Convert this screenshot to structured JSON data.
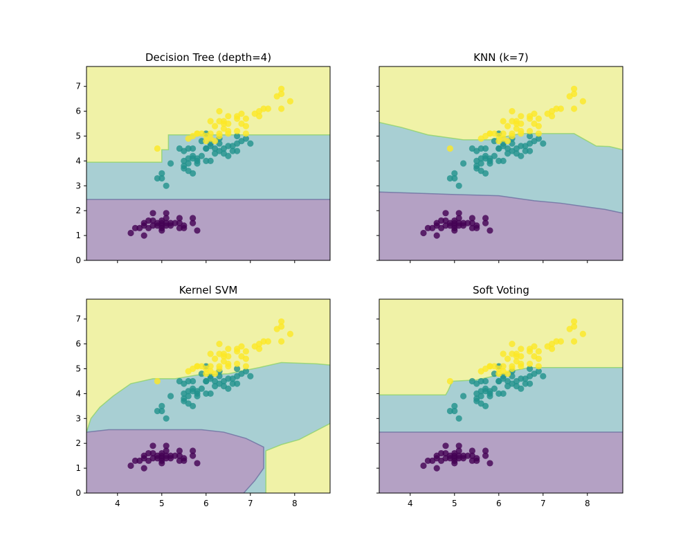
{
  "colors": {
    "class_0": "#440154",
    "class_1": "#21918c",
    "class_2": "#fde725",
    "region_0": "#b4a1c4",
    "region_1": "#a8cfd3",
    "region_2": "#f0f2a7"
  },
  "chart_data": [
    {
      "type": "scatter",
      "title": "Decision Tree (depth=4)",
      "xlim": [
        3.3,
        8.8
      ],
      "ylim": [
        0,
        7.8
      ],
      "xticks": [
        4,
        5,
        6,
        7,
        8
      ],
      "yticks": [
        0,
        1,
        2,
        3,
        4,
        5,
        6,
        7
      ],
      "show_x_tick_labels": false,
      "show_y_tick_labels": true,
      "boundaries": [
        {
          "name": "0-1",
          "points": [
            [
              3.3,
              2.45
            ],
            [
              8.8,
              2.45
            ]
          ]
        },
        {
          "name": "1-2",
          "points": [
            [
              3.3,
              3.95
            ],
            [
              5.0,
              3.95
            ],
            [
              5.0,
              4.45
            ],
            [
              5.15,
              4.45
            ],
            [
              5.15,
              5.05
            ],
            [
              8.8,
              5.05
            ]
          ]
        }
      ]
    },
    {
      "type": "scatter",
      "title": "KNN (k=7)",
      "xlim": [
        3.3,
        8.8
      ],
      "ylim": [
        0,
        7.8
      ],
      "xticks": [
        4,
        5,
        6,
        7,
        8
      ],
      "yticks": [
        0,
        1,
        2,
        3,
        4,
        5,
        6,
        7
      ],
      "show_x_tick_labels": false,
      "show_y_tick_labels": false,
      "boundaries": [
        {
          "name": "0-1",
          "points": [
            [
              3.3,
              2.75
            ],
            [
              4.2,
              2.7
            ],
            [
              5.0,
              2.65
            ],
            [
              6.0,
              2.6
            ],
            [
              6.8,
              2.4
            ],
            [
              7.4,
              2.3
            ],
            [
              8.0,
              2.15
            ],
            [
              8.4,
              2.05
            ],
            [
              8.8,
              1.9
            ]
          ]
        },
        {
          "name": "1-2",
          "points": [
            [
              3.3,
              5.55
            ],
            [
              3.8,
              5.35
            ],
            [
              4.4,
              5.05
            ],
            [
              5.2,
              4.85
            ],
            [
              5.8,
              4.85
            ],
            [
              6.5,
              5.1
            ],
            [
              7.7,
              5.1
            ],
            [
              8.2,
              4.6
            ],
            [
              8.5,
              4.58
            ],
            [
              8.8,
              4.45
            ]
          ]
        }
      ]
    },
    {
      "type": "scatter",
      "title": "Kernel SVM",
      "xlim": [
        3.3,
        8.8
      ],
      "ylim": [
        0,
        7.8
      ],
      "xticks": [
        4,
        5,
        6,
        7,
        8
      ],
      "yticks": [
        0,
        1,
        2,
        3,
        4,
        5,
        6,
        7
      ],
      "show_x_tick_labels": true,
      "show_y_tick_labels": true,
      "region0_polygon": [
        [
          3.3,
          0
        ],
        [
          3.3,
          2.45
        ],
        [
          3.8,
          2.55
        ],
        [
          5.9,
          2.55
        ],
        [
          6.4,
          2.45
        ],
        [
          6.9,
          2.2
        ],
        [
          7.3,
          1.85
        ],
        [
          7.3,
          1.0
        ],
        [
          7.1,
          0.5
        ],
        [
          6.85,
          0
        ]
      ],
      "boundaries": [
        {
          "name": "0-1",
          "points": [
            [
              3.3,
              2.45
            ],
            [
              3.8,
              2.55
            ],
            [
              5.9,
              2.55
            ],
            [
              6.4,
              2.45
            ],
            [
              6.9,
              2.2
            ],
            [
              7.3,
              1.85
            ],
            [
              7.3,
              1.0
            ],
            [
              7.1,
              0.5
            ],
            [
              6.85,
              0
            ]
          ]
        },
        {
          "name": "1-2a",
          "points": [
            [
              3.3,
              2.45
            ],
            [
              3.4,
              3.0
            ],
            [
              3.6,
              3.45
            ],
            [
              3.9,
              3.9
            ],
            [
              4.3,
              4.4
            ],
            [
              4.8,
              4.6
            ],
            [
              5.3,
              4.6
            ],
            [
              5.8,
              4.75
            ],
            [
              6.5,
              4.8
            ],
            [
              7.2,
              5.05
            ],
            [
              7.7,
              5.25
            ],
            [
              8.5,
              5.2
            ],
            [
              8.8,
              5.15
            ]
          ]
        },
        {
          "name": "1-2b",
          "points": [
            [
              7.35,
              0
            ],
            [
              7.35,
              1.7
            ],
            [
              7.7,
              1.95
            ],
            [
              8.1,
              2.15
            ],
            [
              8.8,
              2.8
            ]
          ]
        }
      ]
    },
    {
      "type": "scatter",
      "title": "Soft Voting",
      "xlim": [
        3.3,
        8.8
      ],
      "ylim": [
        0,
        7.8
      ],
      "xticks": [
        4,
        5,
        6,
        7,
        8
      ],
      "yticks": [
        0,
        1,
        2,
        3,
        4,
        5,
        6,
        7
      ],
      "show_x_tick_labels": true,
      "show_y_tick_labels": false,
      "boundaries": [
        {
          "name": "0-1",
          "points": [
            [
              3.3,
              2.45
            ],
            [
              8.8,
              2.45
            ]
          ]
        },
        {
          "name": "1-2",
          "points": [
            [
              3.3,
              3.95
            ],
            [
              4.8,
              3.95
            ],
            [
              4.85,
              4.1
            ],
            [
              4.95,
              4.5
            ],
            [
              5.5,
              4.55
            ],
            [
              6.0,
              4.75
            ],
            [
              6.4,
              4.95
            ],
            [
              6.7,
              5.05
            ],
            [
              8.8,
              5.05
            ]
          ]
        }
      ]
    }
  ],
  "points": [
    {
      "cls": 0,
      "x": 4.3,
      "y": 1.1
    },
    {
      "cls": 0,
      "x": 4.4,
      "y": 1.3
    },
    {
      "cls": 0,
      "x": 4.5,
      "y": 1.3
    },
    {
      "cls": 0,
      "x": 4.6,
      "y": 1.0
    },
    {
      "cls": 0,
      "x": 4.6,
      "y": 1.4
    },
    {
      "cls": 0,
      "x": 4.6,
      "y": 1.5
    },
    {
      "cls": 0,
      "x": 4.7,
      "y": 1.3
    },
    {
      "cls": 0,
      "x": 4.7,
      "y": 1.6
    },
    {
      "cls": 0,
      "x": 4.8,
      "y": 1.4
    },
    {
      "cls": 0,
      "x": 4.8,
      "y": 1.6
    },
    {
      "cls": 0,
      "x": 4.8,
      "y": 1.9
    },
    {
      "cls": 0,
      "x": 4.9,
      "y": 1.4
    },
    {
      "cls": 0,
      "x": 4.9,
      "y": 1.5
    },
    {
      "cls": 0,
      "x": 5.0,
      "y": 1.2
    },
    {
      "cls": 0,
      "x": 5.0,
      "y": 1.3
    },
    {
      "cls": 0,
      "x": 5.0,
      "y": 1.4
    },
    {
      "cls": 0,
      "x": 5.0,
      "y": 1.5
    },
    {
      "cls": 0,
      "x": 5.0,
      "y": 1.6
    },
    {
      "cls": 0,
      "x": 5.1,
      "y": 1.4
    },
    {
      "cls": 0,
      "x": 5.1,
      "y": 1.5
    },
    {
      "cls": 0,
      "x": 5.1,
      "y": 1.7
    },
    {
      "cls": 0,
      "x": 5.1,
      "y": 1.9
    },
    {
      "cls": 0,
      "x": 5.2,
      "y": 1.4
    },
    {
      "cls": 0,
      "x": 5.2,
      "y": 1.5
    },
    {
      "cls": 0,
      "x": 5.3,
      "y": 1.5
    },
    {
      "cls": 0,
      "x": 5.4,
      "y": 1.3
    },
    {
      "cls": 0,
      "x": 5.4,
      "y": 1.5
    },
    {
      "cls": 0,
      "x": 5.4,
      "y": 1.7
    },
    {
      "cls": 0,
      "x": 5.5,
      "y": 1.3
    },
    {
      "cls": 0,
      "x": 5.5,
      "y": 1.4
    },
    {
      "cls": 0,
      "x": 5.7,
      "y": 1.5
    },
    {
      "cls": 0,
      "x": 5.7,
      "y": 1.7
    },
    {
      "cls": 0,
      "x": 5.8,
      "y": 1.2
    },
    {
      "cls": 1,
      "x": 4.9,
      "y": 3.3
    },
    {
      "cls": 1,
      "x": 5.0,
      "y": 3.5
    },
    {
      "cls": 1,
      "x": 5.0,
      "y": 3.3
    },
    {
      "cls": 1,
      "x": 5.1,
      "y": 3.0
    },
    {
      "cls": 1,
      "x": 5.2,
      "y": 3.9
    },
    {
      "cls": 1,
      "x": 5.4,
      "y": 4.5
    },
    {
      "cls": 1,
      "x": 5.5,
      "y": 4.0
    },
    {
      "cls": 1,
      "x": 5.5,
      "y": 3.8
    },
    {
      "cls": 1,
      "x": 5.5,
      "y": 3.7
    },
    {
      "cls": 1,
      "x": 5.5,
      "y": 4.4
    },
    {
      "cls": 1,
      "x": 5.6,
      "y": 3.6
    },
    {
      "cls": 1,
      "x": 5.6,
      "y": 4.5
    },
    {
      "cls": 1,
      "x": 5.6,
      "y": 4.1
    },
    {
      "cls": 1,
      "x": 5.6,
      "y": 3.9
    },
    {
      "cls": 1,
      "x": 5.7,
      "y": 4.5
    },
    {
      "cls": 1,
      "x": 5.7,
      "y": 3.5
    },
    {
      "cls": 1,
      "x": 5.7,
      "y": 4.2
    },
    {
      "cls": 1,
      "x": 5.7,
      "y": 4.1
    },
    {
      "cls": 1,
      "x": 5.8,
      "y": 4.1
    },
    {
      "cls": 1,
      "x": 5.8,
      "y": 3.9
    },
    {
      "cls": 1,
      "x": 5.8,
      "y": 4.0
    },
    {
      "cls": 1,
      "x": 5.9,
      "y": 4.8
    },
    {
      "cls": 1,
      "x": 5.9,
      "y": 4.2
    },
    {
      "cls": 1,
      "x": 6.0,
      "y": 4.5
    },
    {
      "cls": 1,
      "x": 6.0,
      "y": 4.0
    },
    {
      "cls": 1,
      "x": 6.0,
      "y": 5.1
    },
    {
      "cls": 1,
      "x": 6.0,
      "y": 4.5
    },
    {
      "cls": 1,
      "x": 6.1,
      "y": 4.7
    },
    {
      "cls": 1,
      "x": 6.1,
      "y": 4.0
    },
    {
      "cls": 1,
      "x": 6.1,
      "y": 4.6
    },
    {
      "cls": 1,
      "x": 6.2,
      "y": 4.5
    },
    {
      "cls": 1,
      "x": 6.2,
      "y": 4.3
    },
    {
      "cls": 1,
      "x": 6.3,
      "y": 4.7
    },
    {
      "cls": 1,
      "x": 6.3,
      "y": 4.9
    },
    {
      "cls": 1,
      "x": 6.3,
      "y": 4.4
    },
    {
      "cls": 1,
      "x": 6.4,
      "y": 4.5
    },
    {
      "cls": 1,
      "x": 6.4,
      "y": 4.3
    },
    {
      "cls": 1,
      "x": 6.5,
      "y": 4.6
    },
    {
      "cls": 1,
      "x": 6.6,
      "y": 4.6
    },
    {
      "cls": 1,
      "x": 6.6,
      "y": 4.4
    },
    {
      "cls": 1,
      "x": 6.7,
      "y": 4.7
    },
    {
      "cls": 1,
      "x": 6.7,
      "y": 4.4
    },
    {
      "cls": 1,
      "x": 6.7,
      "y": 5.0
    },
    {
      "cls": 1,
      "x": 6.8,
      "y": 4.8
    },
    {
      "cls": 1,
      "x": 6.9,
      "y": 4.9
    },
    {
      "cls": 1,
      "x": 7.0,
      "y": 4.7
    },
    {
      "cls": 1,
      "x": 6.5,
      "y": 4.2
    },
    {
      "cls": 2,
      "x": 4.9,
      "y": 4.5
    },
    {
      "cls": 2,
      "x": 5.6,
      "y": 4.9
    },
    {
      "cls": 2,
      "x": 5.7,
      "y": 5.0
    },
    {
      "cls": 2,
      "x": 5.8,
      "y": 5.1
    },
    {
      "cls": 2,
      "x": 5.9,
      "y": 5.1
    },
    {
      "cls": 2,
      "x": 6.0,
      "y": 4.8
    },
    {
      "cls": 2,
      "x": 6.0,
      "y": 5.0
    },
    {
      "cls": 2,
      "x": 6.1,
      "y": 4.9
    },
    {
      "cls": 2,
      "x": 6.1,
      "y": 5.6
    },
    {
      "cls": 2,
      "x": 6.2,
      "y": 4.8
    },
    {
      "cls": 2,
      "x": 6.2,
      "y": 5.4
    },
    {
      "cls": 2,
      "x": 6.3,
      "y": 5.1
    },
    {
      "cls": 2,
      "x": 6.3,
      "y": 5.6
    },
    {
      "cls": 2,
      "x": 6.3,
      "y": 6.0
    },
    {
      "cls": 2,
      "x": 6.4,
      "y": 5.3
    },
    {
      "cls": 2,
      "x": 6.4,
      "y": 5.5
    },
    {
      "cls": 2,
      "x": 6.4,
      "y": 5.6
    },
    {
      "cls": 2,
      "x": 6.5,
      "y": 5.2
    },
    {
      "cls": 2,
      "x": 6.5,
      "y": 5.5
    },
    {
      "cls": 2,
      "x": 6.5,
      "y": 5.8
    },
    {
      "cls": 2,
      "x": 6.5,
      "y": 5.1
    },
    {
      "cls": 2,
      "x": 6.7,
      "y": 5.2
    },
    {
      "cls": 2,
      "x": 6.7,
      "y": 5.7
    },
    {
      "cls": 2,
      "x": 6.7,
      "y": 5.8
    },
    {
      "cls": 2,
      "x": 6.8,
      "y": 5.5
    },
    {
      "cls": 2,
      "x": 6.8,
      "y": 5.9
    },
    {
      "cls": 2,
      "x": 6.9,
      "y": 5.1
    },
    {
      "cls": 2,
      "x": 6.9,
      "y": 5.4
    },
    {
      "cls": 2,
      "x": 6.9,
      "y": 5.7
    },
    {
      "cls": 2,
      "x": 7.1,
      "y": 5.9
    },
    {
      "cls": 2,
      "x": 7.2,
      "y": 5.8
    },
    {
      "cls": 2,
      "x": 7.2,
      "y": 6.0
    },
    {
      "cls": 2,
      "x": 7.3,
      "y": 6.1
    },
    {
      "cls": 2,
      "x": 7.4,
      "y": 6.1
    },
    {
      "cls": 2,
      "x": 7.6,
      "y": 6.6
    },
    {
      "cls": 2,
      "x": 7.7,
      "y": 6.7
    },
    {
      "cls": 2,
      "x": 7.7,
      "y": 6.1
    },
    {
      "cls": 2,
      "x": 7.7,
      "y": 6.9
    },
    {
      "cls": 2,
      "x": 7.9,
      "y": 6.4
    },
    {
      "cls": 2,
      "x": 6.1,
      "y": 5.1
    },
    {
      "cls": 2,
      "x": 5.8,
      "y": 5.1
    },
    {
      "cls": 2,
      "x": 6.3,
      "y": 5.0
    }
  ]
}
